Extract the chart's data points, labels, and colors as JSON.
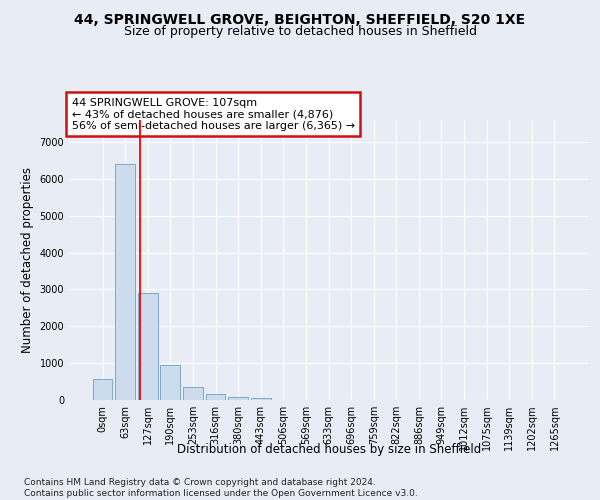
{
  "title_line1": "44, SPRINGWELL GROVE, BEIGHTON, SHEFFIELD, S20 1XE",
  "title_line2": "Size of property relative to detached houses in Sheffield",
  "xlabel": "Distribution of detached houses by size in Sheffield",
  "ylabel": "Number of detached properties",
  "footnote": "Contains HM Land Registry data © Crown copyright and database right 2024.\nContains public sector information licensed under the Open Government Licence v3.0.",
  "bar_labels": [
    "0sqm",
    "63sqm",
    "127sqm",
    "190sqm",
    "253sqm",
    "316sqm",
    "380sqm",
    "443sqm",
    "506sqm",
    "569sqm",
    "633sqm",
    "696sqm",
    "759sqm",
    "822sqm",
    "886sqm",
    "949sqm",
    "1012sqm",
    "1075sqm",
    "1139sqm",
    "1202sqm",
    "1265sqm"
  ],
  "bar_values": [
    580,
    6400,
    2900,
    960,
    350,
    150,
    90,
    55,
    0,
    0,
    0,
    0,
    0,
    0,
    0,
    0,
    0,
    0,
    0,
    0,
    0
  ],
  "bar_color": "#cddcec",
  "bar_edge_color": "#7aaaca",
  "vline_x": 1.65,
  "annotation_text": "44 SPRINGWELL GROVE: 107sqm\n← 43% of detached houses are smaller (4,876)\n56% of semi-detached houses are larger (6,365) →",
  "annotation_box_facecolor": "#ffffff",
  "annotation_box_edgecolor": "#cc1111",
  "ylim_max": 7600,
  "yticks": [
    0,
    1000,
    2000,
    3000,
    4000,
    5000,
    6000,
    7000
  ],
  "bg_color": "#e8edf5",
  "grid_color": "#ffffff",
  "title_fontsize": 10,
  "subtitle_fontsize": 9,
  "axis_label_fontsize": 8.5,
  "tick_fontsize": 7,
  "annotation_fontsize": 8,
  "footnote_fontsize": 6.5
}
